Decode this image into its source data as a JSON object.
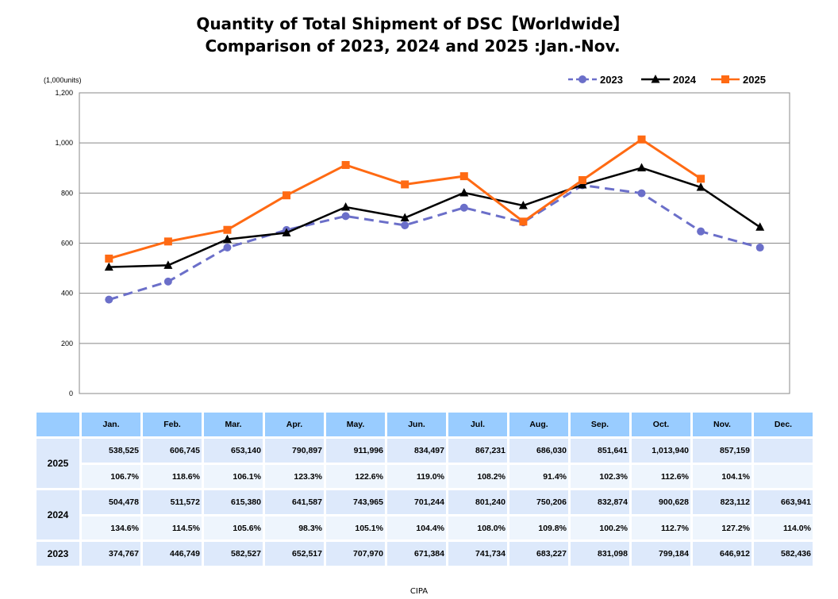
{
  "title_line1": "Quantity of Total Shipment of DSC【Worldwide】",
  "title_line2": "Comparison of 2023, 2024 and 2025 :Jan.-Nov.",
  "footer": "CIPA",
  "chart_data": {
    "type": "line",
    "ylabel": "(1,000units)",
    "ylim": [
      0,
      1200
    ],
    "yticks": [
      "0",
      "200",
      "400",
      "600",
      "800",
      "1,000",
      "1,200"
    ],
    "ytick_values": [
      0,
      200,
      400,
      600,
      800,
      1000,
      1200
    ],
    "grid": true,
    "legend": "top-right",
    "categories": [
      "Jan.",
      "Feb.",
      "Mar.",
      "Apr.",
      "May.",
      "Jun.",
      "Jul.",
      "Aug.",
      "Sep.",
      "Oct.",
      "Nov.",
      "Dec."
    ],
    "series": [
      {
        "name": "2023",
        "color": "#6b6fc9",
        "style": "dashed",
        "marker": "circle",
        "values": [
          374.767,
          446.749,
          582.527,
          652.517,
          707.97,
          671.384,
          741.734,
          683.227,
          831.098,
          799.184,
          646.912,
          582.436
        ]
      },
      {
        "name": "2024",
        "color": "#000000",
        "style": "solid",
        "marker": "triangle",
        "values": [
          504.478,
          511.572,
          615.38,
          641.587,
          743.965,
          701.244,
          801.24,
          750.206,
          832.874,
          900.628,
          823.112,
          663.941
        ]
      },
      {
        "name": "2025",
        "color": "#ff6a13",
        "style": "solid",
        "marker": "square",
        "values": [
          538.525,
          606.745,
          653.14,
          790.897,
          911.996,
          834.497,
          867.231,
          686.03,
          851.641,
          1013.94,
          857.159,
          null
        ]
      }
    ]
  },
  "table": {
    "header": [
      "Jan.",
      "Feb.",
      "Mar.",
      "Apr.",
      "May.",
      "Jun.",
      "Jul.",
      "Aug.",
      "Sep.",
      "Oct.",
      "Nov.",
      "Dec."
    ],
    "rows": [
      {
        "year": "2025",
        "units": [
          "538,525",
          "606,745",
          "653,140",
          "790,897",
          "911,996",
          "834,497",
          "867,231",
          "686,030",
          "851,641",
          "1,013,940",
          "857,159",
          ""
        ],
        "ratio": [
          "106.7%",
          "118.6%",
          "106.1%",
          "123.3%",
          "122.6%",
          "119.0%",
          "108.2%",
          "91.4%",
          "102.3%",
          "112.6%",
          "104.1%",
          ""
        ]
      },
      {
        "year": "2024",
        "units": [
          "504,478",
          "511,572",
          "615,380",
          "641,587",
          "743,965",
          "701,244",
          "801,240",
          "750,206",
          "832,874",
          "900,628",
          "823,112",
          "663,941"
        ],
        "ratio": [
          "134.6%",
          "114.5%",
          "105.6%",
          "98.3%",
          "105.1%",
          "104.4%",
          "108.0%",
          "109.8%",
          "100.2%",
          "112.7%",
          "127.2%",
          "114.0%"
        ]
      },
      {
        "year": "2023",
        "units": [
          "374,767",
          "446,749",
          "582,527",
          "652,517",
          "707,970",
          "671,384",
          "741,734",
          "683,227",
          "831,098",
          "799,184",
          "646,912",
          "582,436"
        ]
      }
    ]
  }
}
